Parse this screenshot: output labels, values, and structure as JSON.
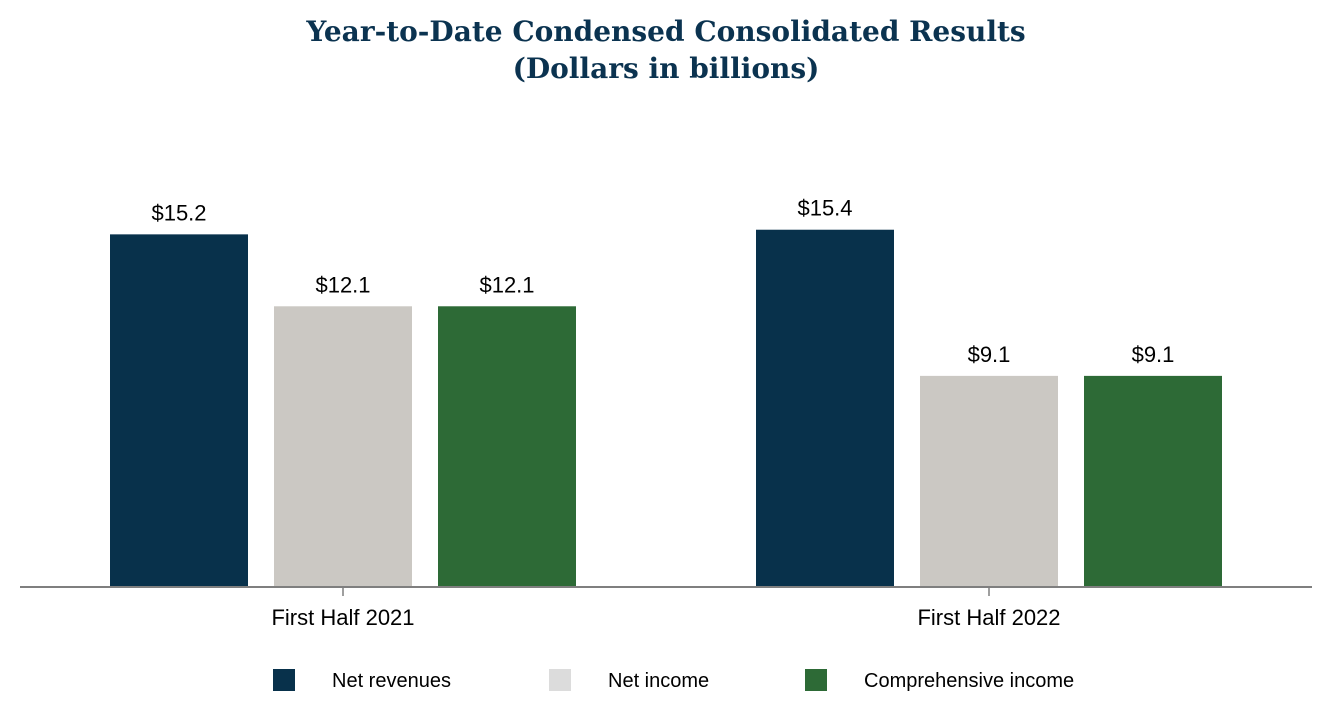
{
  "chart_data": {
    "type": "bar",
    "title": "Year-to-Date Condensed Consolidated Results",
    "subtitle": "(Dollars in billions)",
    "categories": [
      "First Half 2021",
      "First Half 2022"
    ],
    "series": [
      {
        "name": "Net revenues",
        "values": [
          15.2,
          15.4
        ],
        "labels": [
          "$15.2",
          "$15.4"
        ],
        "color": "#08314b"
      },
      {
        "name": "Net income",
        "values": [
          12.1,
          9.1
        ],
        "labels": [
          "$12.1",
          "$9.1"
        ],
        "color": "#cbc8c3"
      },
      {
        "name": "Comprehensive income",
        "values": [
          12.1,
          9.1
        ],
        "labels": [
          "$12.1",
          "$9.1"
        ],
        "color": "#2d6a36"
      }
    ],
    "ylim": [
      0,
      17
    ],
    "grid": false,
    "legend_position": "bottom",
    "xlabel": "",
    "ylabel": ""
  }
}
